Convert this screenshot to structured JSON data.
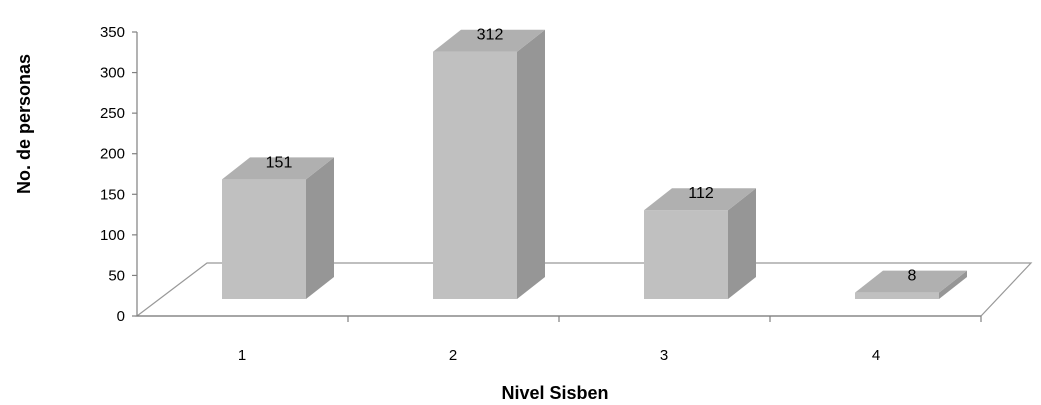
{
  "chart_data": {
    "type": "bar",
    "style": "3d-column",
    "categories": [
      "1",
      "2",
      "3",
      "4"
    ],
    "values": [
      151,
      312,
      112,
      8
    ],
    "data_labels": [
      "151",
      "312",
      "112",
      "8"
    ],
    "xlabel": "Nivel Sisben",
    "ylabel": "No. de personas",
    "ylim": [
      0,
      350
    ],
    "yticks": [
      "0",
      "50",
      "100",
      "150",
      "200",
      "250",
      "300",
      "350"
    ],
    "grid": false,
    "legend": "none",
    "colors": {
      "bar_front": "#c0c0c0",
      "bar_side": "#969696",
      "bar_top": "#b0b0b0",
      "axis": "#808080",
      "floor_outline": "#999999"
    }
  }
}
